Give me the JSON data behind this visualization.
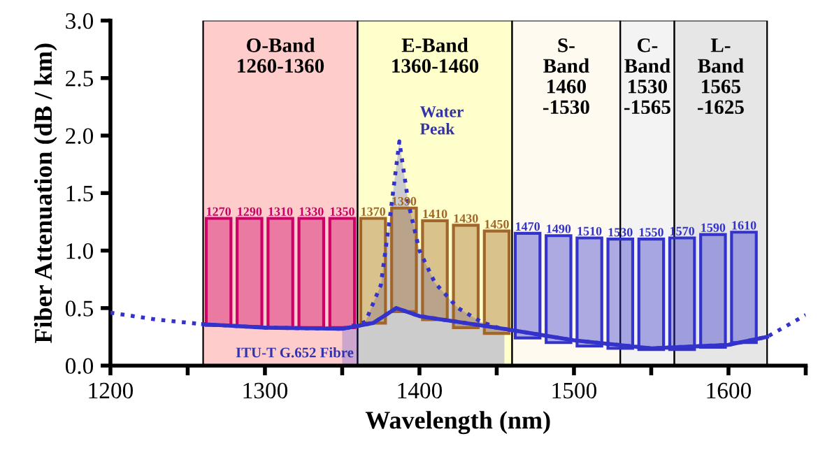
{
  "chart_data": {
    "type": "line",
    "xlabel": "Wavelength (nm)",
    "ylabel": "Fiber Attenuation (dB / km)",
    "xlim": [
      1200,
      1650
    ],
    "ylim": [
      0,
      3.0
    ],
    "xticks": [
      1200,
      {
        "value": 1250,
        "label": null
      },
      1300,
      {
        "value": 1350,
        "label": null
      },
      1400,
      {
        "value": 1450,
        "label": null
      },
      1500,
      {
        "value": 1550,
        "label": null
      },
      1600,
      {
        "value": 1650,
        "label": null
      }
    ],
    "yticks": [
      {
        "value": 0,
        "label": "0.0"
      },
      0.5,
      {
        "value": 1,
        "label": "1.0"
      },
      1.5,
      {
        "value": 2,
        "label": "2.0"
      },
      2.5,
      {
        "value": 3,
        "label": "3.0"
      }
    ],
    "grid": false,
    "legend": false,
    "bands": [
      {
        "axis": "x",
        "from": 1260,
        "to": 1360,
        "label": "O-Band\n1260-1360",
        "color": "#ffcccc"
      },
      {
        "axis": "x",
        "from": 1360,
        "to": 1460,
        "label": "E-Band\n1360-1460",
        "color": "#ffffcc"
      },
      {
        "axis": "x",
        "from": 1460,
        "to": 1530,
        "label": "S-\nBand\n1460\n-1530",
        "color": "#fffaf0"
      },
      {
        "axis": "x",
        "from": 1530,
        "to": 1565,
        "label": "C-\nBand\n1530\n-1565",
        "color": "#f3f3f3"
      },
      {
        "axis": "x",
        "from": 1565,
        "to": 1625,
        "label": "L-\nBand\n1565\n-1625",
        "color": "#e6e6e6"
      }
    ],
    "series": [
      {
        "type": "area",
        "color": "#3333cc",
        "line_style": "dotted",
        "x": [
          1350,
          1365,
          1375,
          1381,
          1387,
          1393,
          1400,
          1410,
          1425,
          1440,
          1455
        ],
        "values": [
          0.32,
          0.38,
          0.7,
          1.3,
          1.95,
          1.4,
          1.0,
          0.72,
          0.5,
          0.38,
          0.31
        ]
      },
      {
        "type": "bar",
        "x": [
          1270,
          1290,
          1310,
          1330,
          1350
        ],
        "color": "#cc0066",
        "base": [
          0.35,
          0.34,
          0.33,
          0.33,
          0.33
        ],
        "values": [
          0.93,
          0.94,
          0.95,
          0.95,
          0.95
        ]
      },
      {
        "type": "bar",
        "x": [
          1370,
          1390,
          1410,
          1430,
          1450
        ],
        "color": "#a0662a",
        "base": [
          0.37,
          0.47,
          0.4,
          0.33,
          0.28
        ],
        "values": [
          0.91,
          0.9,
          0.86,
          0.89,
          0.89
        ]
      },
      {
        "type": "bar",
        "x": [
          1470,
          1490,
          1510,
          1530,
          1550,
          1570,
          1590,
          1610
        ],
        "color": "#3333cc",
        "base": [
          0.24,
          0.2,
          0.17,
          0.15,
          0.14,
          0.14,
          0.16,
          0.2
        ],
        "values": [
          0.91,
          0.93,
          0.94,
          0.95,
          0.96,
          0.97,
          0.98,
          0.96
        ]
      },
      {
        "color": "#3333cc",
        "line_style": "dotted",
        "x": [
          1200,
          1230,
          1260,
          1300,
          1350,
          1370,
          1385,
          1400,
          1450,
          1500,
          1550,
          1600,
          1625,
          1650
        ],
        "values": [
          0.46,
          0.4,
          0.36,
          0.33,
          0.32,
          0.37,
          0.5,
          0.43,
          0.33,
          0.22,
          0.15,
          0.18,
          0.25,
          0.44
        ]
      },
      {
        "color": "#3333cc",
        "line_style": "solid",
        "x": [
          1260,
          1300,
          1350,
          1370,
          1385,
          1400,
          1450,
          1500,
          1550,
          1600,
          1625
        ],
        "values": [
          0.36,
          0.33,
          0.32,
          0.37,
          0.5,
          0.43,
          0.33,
          0.22,
          0.15,
          0.18,
          0.25
        ]
      }
    ],
    "annotations": [
      "Water\nPeak",
      "ITU-T G.652 Fibre",
      {
        "text": "1270",
        "x": 1270,
        "y": 1.28
      },
      {
        "text": "1290",
        "x": 1290,
        "y": 1.28
      },
      {
        "text": "1310",
        "x": 1310,
        "y": 1.28
      },
      {
        "text": "1330",
        "x": 1330,
        "y": 1.28
      },
      {
        "text": "1350",
        "x": 1350,
        "y": 1.28
      },
      {
        "text": "1370",
        "x": 1370,
        "y": 1.28
      },
      {
        "text": "1390",
        "x": 1390,
        "y": 1.37
      },
      {
        "text": "1410",
        "x": 1410,
        "y": 1.26
      },
      {
        "text": "1430",
        "x": 1430,
        "y": 1.22
      },
      {
        "text": "1450",
        "x": 1450,
        "y": 1.17
      },
      {
        "text": "1470",
        "x": 1470,
        "y": 1.15
      },
      {
        "text": "1490",
        "x": 1490,
        "y": 1.13
      },
      {
        "text": "1510",
        "x": 1510,
        "y": 1.11
      },
      {
        "text": "1530",
        "x": 1530,
        "y": 1.1
      },
      {
        "text": "1550",
        "x": 1550,
        "y": 1.1
      },
      {
        "text": "1570",
        "x": 1570,
        "y": 1.11
      },
      {
        "text": "1590",
        "x": 1590,
        "y": 1.14
      },
      {
        "text": "1610",
        "x": 1610,
        "y": 1.16
      }
    ]
  }
}
